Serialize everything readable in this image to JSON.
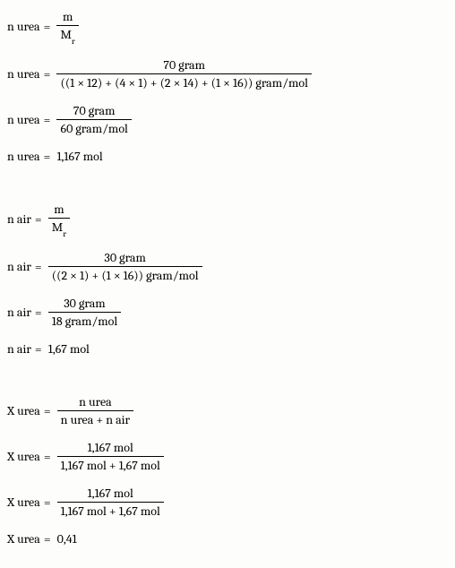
{
  "urea": {
    "lhs": "n urea",
    "line1": {
      "num": "m",
      "den_m": "M",
      "den_sub": "r"
    },
    "line2": {
      "num": "70 gram",
      "den": "((1 × 12) + (4 × 1) + (2 × 14) + (1 × 16)) gram/mol"
    },
    "line3": {
      "num": "70 gram",
      "den": "60 gram/mol"
    },
    "result": "1,167 mol"
  },
  "air": {
    "lhs": "n air",
    "line1": {
      "num": "m",
      "den_m": "M",
      "den_sub": "r"
    },
    "line2": {
      "num": "30 gram",
      "den": "((2 × 1) + (1 × 16)) gram/mol"
    },
    "line3": {
      "num": "30 gram",
      "den": "18 gram/mol"
    },
    "result": "1,67 mol"
  },
  "x": {
    "lhs": "X urea",
    "line1": {
      "num": "n urea",
      "den": "n urea + n air"
    },
    "line2": {
      "num": "1,167 mol",
      "den": "1,167 mol + 1,67 mol"
    },
    "line3": {
      "num": "1,167 mol",
      "den": "1,167 mol + 1,67 mol"
    },
    "result": "0,41"
  }
}
